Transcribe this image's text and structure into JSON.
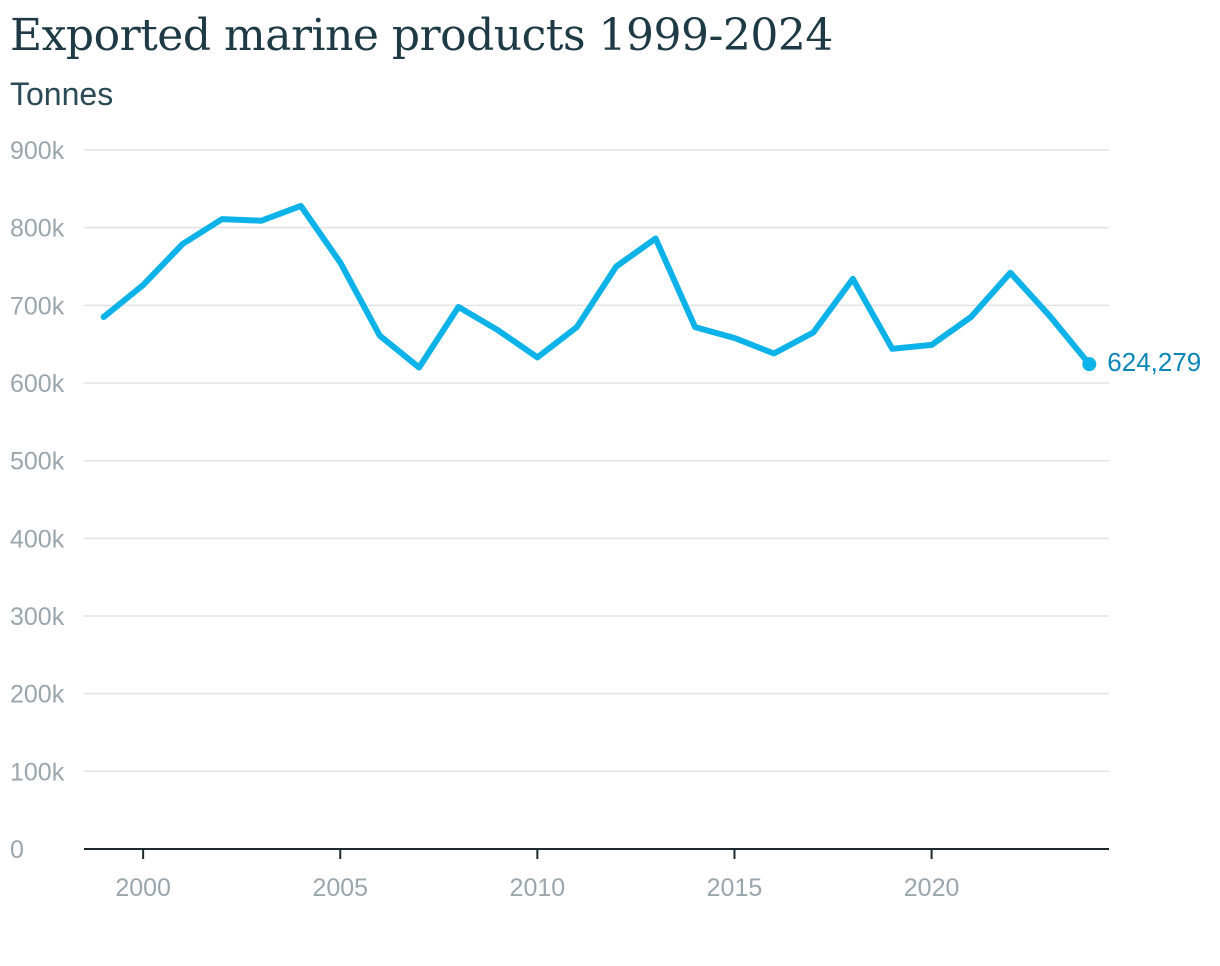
{
  "chart_data": {
    "type": "line",
    "title": "Exported marine products 1999-2024",
    "subtitle": "Tonnes",
    "xlabel": "",
    "ylabel": "",
    "x": [
      1999,
      2000,
      2001,
      2002,
      2003,
      2004,
      2005,
      2006,
      2007,
      2008,
      2009,
      2010,
      2011,
      2012,
      2013,
      2014,
      2015,
      2016,
      2017,
      2018,
      2019,
      2020,
      2021,
      2022,
      2023,
      2024
    ],
    "series": [
      {
        "values": [
          685000,
          726000,
          779000,
          811000,
          809000,
          828000,
          755000,
          661000,
          620000,
          698000,
          668000,
          633000,
          672000,
          750000,
          786000,
          672000,
          658000,
          638000,
          665000,
          734000,
          644000,
          649000,
          685000,
          742000,
          686000,
          624279
        ],
        "color": "#0db3e8"
      }
    ],
    "xlim": [
      1998.5,
      2024.5
    ],
    "ylim": [
      0,
      900000
    ],
    "y_ticks": [
      {
        "value": 0,
        "label": "0"
      },
      {
        "value": 100000,
        "label": "100k"
      },
      {
        "value": 200000,
        "label": "200k"
      },
      {
        "value": 300000,
        "label": "300k"
      },
      {
        "value": 400000,
        "label": "400k"
      },
      {
        "value": 500000,
        "label": "500k"
      },
      {
        "value": 600000,
        "label": "600k"
      },
      {
        "value": 700000,
        "label": "700k"
      },
      {
        "value": 800000,
        "label": "800k"
      },
      {
        "value": 900000,
        "label": "900k"
      }
    ],
    "x_ticks": [
      {
        "value": 2000,
        "label": "2000"
      },
      {
        "value": 2005,
        "label": "2005"
      },
      {
        "value": 2010,
        "label": "2010"
      },
      {
        "value": 2015,
        "label": "2015"
      },
      {
        "value": 2020,
        "label": "2020"
      }
    ],
    "annotations": [
      {
        "x": 2024,
        "y": 624279,
        "text": "624,279",
        "color": "#0b86b8"
      }
    ],
    "grid": true,
    "legend": "none"
  }
}
